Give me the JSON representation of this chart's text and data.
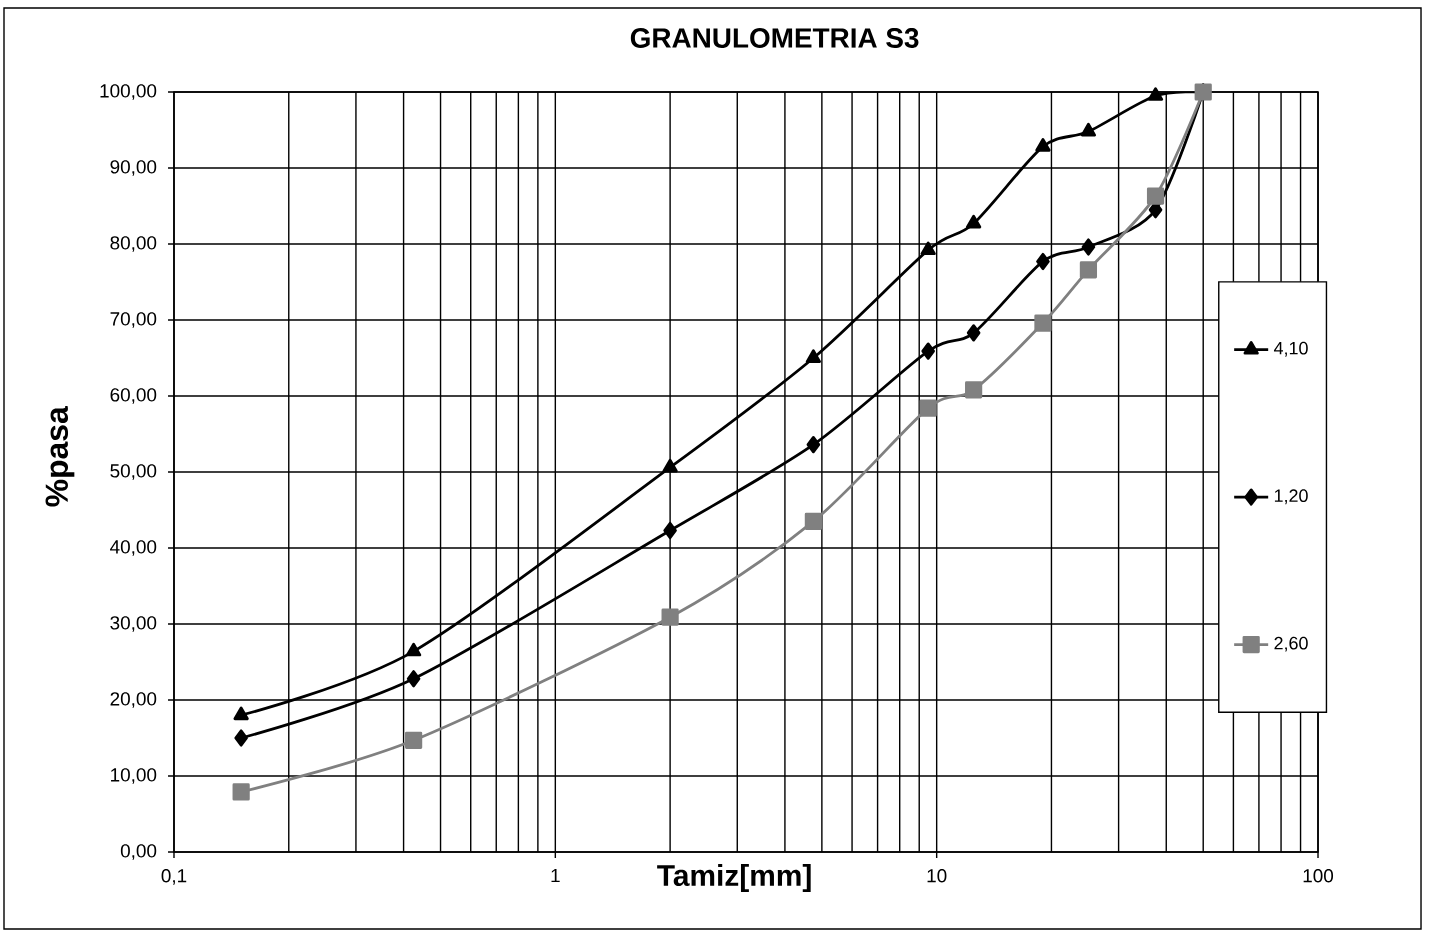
{
  "chart_data": {
    "type": "line",
    "title": "GRANULOMETRIA S3",
    "xlabel": "Tamiz[mm]",
    "ylabel": "%pasa",
    "x": [
      0.15,
      0.425,
      2,
      4.75,
      9.5,
      12.5,
      19,
      25,
      37.5,
      50
    ],
    "series": [
      {
        "name": "4,10",
        "color": "#000000",
        "marker": "triangle",
        "values": [
          18.0,
          26.4,
          50.6,
          65.0,
          79.2,
          82.7,
          92.8,
          94.8,
          99.5,
          100
        ]
      },
      {
        "name": "1,20",
        "color": "#000000",
        "marker": "diamond",
        "values": [
          15.0,
          22.8,
          42.3,
          53.6,
          65.9,
          68.3,
          77.7,
          79.6,
          84.5,
          100
        ]
      },
      {
        "name": "2,60",
        "color": "#808080",
        "marker": "square",
        "values": [
          7.9,
          14.7,
          30.9,
          43.5,
          58.4,
          60.8,
          69.6,
          76.6,
          86.3,
          100
        ]
      }
    ],
    "log": "x",
    "xlim": [
      0.1,
      100
    ],
    "xticks": [
      {
        "value": 0.1,
        "label": "0,1"
      },
      1,
      10,
      100
    ],
    "ylim": [
      0,
      100
    ],
    "yticks": [
      {
        "value": 0,
        "label": "0,00"
      },
      {
        "value": 10,
        "label": "10,00"
      },
      {
        "value": 20,
        "label": "20,00"
      },
      {
        "value": 30,
        "label": "30,00"
      },
      {
        "value": 40,
        "label": "40,00"
      },
      {
        "value": 50,
        "label": "50,00"
      },
      {
        "value": 60,
        "label": "60,00"
      },
      {
        "value": 70,
        "label": "70,00"
      },
      {
        "value": 80,
        "label": "80,00"
      },
      {
        "value": 90,
        "label": "90,00"
      },
      {
        "value": 100,
        "label": "100,00"
      }
    ],
    "grid": true,
    "legend": "right",
    "line_style": "solid"
  }
}
